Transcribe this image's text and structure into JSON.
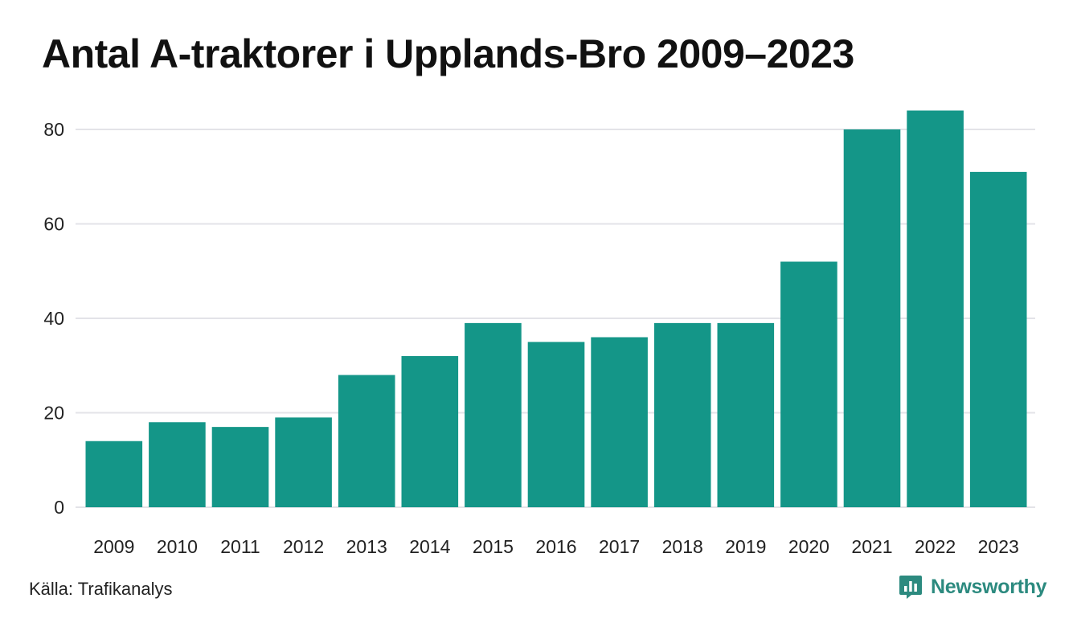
{
  "title": "Antal A-traktorer i Upplands-Bro 2009–2023",
  "source": "Källa: Trafikanalys",
  "brand": {
    "name": "Newsworthy",
    "icon": "newsworthy-logo-icon",
    "color": "#2c8a7f"
  },
  "colors": {
    "bar": "#149688",
    "grid": "#e3e3e8"
  },
  "chart_data": {
    "type": "bar",
    "categories": [
      "2009",
      "2010",
      "2011",
      "2012",
      "2013",
      "2014",
      "2015",
      "2016",
      "2017",
      "2018",
      "2019",
      "2020",
      "2021",
      "2022",
      "2023"
    ],
    "values": [
      14,
      18,
      17,
      19,
      28,
      32,
      39,
      35,
      36,
      39,
      39,
      52,
      80,
      84,
      71
    ],
    "yticks": [
      "0",
      "20",
      "40",
      "60",
      "80"
    ],
    "ylim": [
      0,
      85
    ],
    "xlabel": "",
    "ylabel": "",
    "grid": true,
    "legend": "none"
  }
}
